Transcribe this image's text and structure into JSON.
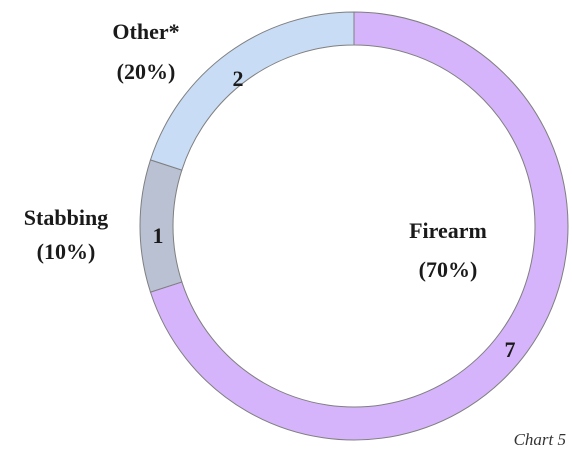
{
  "chart_data": {
    "type": "pie",
    "variant": "donut",
    "categories": [
      "Firearm",
      "Stabbing",
      "Other*"
    ],
    "values": [
      7,
      1,
      2
    ],
    "percent_labels": [
      "(70%)",
      "(10%)",
      "(20%)"
    ],
    "value_labels": [
      "7",
      "1",
      "2"
    ],
    "colors": [
      "#d6b4fb",
      "#b9c1d3",
      "#c8dcf5"
    ],
    "stroke_color": "#7f7f7f",
    "start_angle_deg": 0,
    "direction": "clockwise",
    "title": "",
    "caption": "Chart 5"
  }
}
